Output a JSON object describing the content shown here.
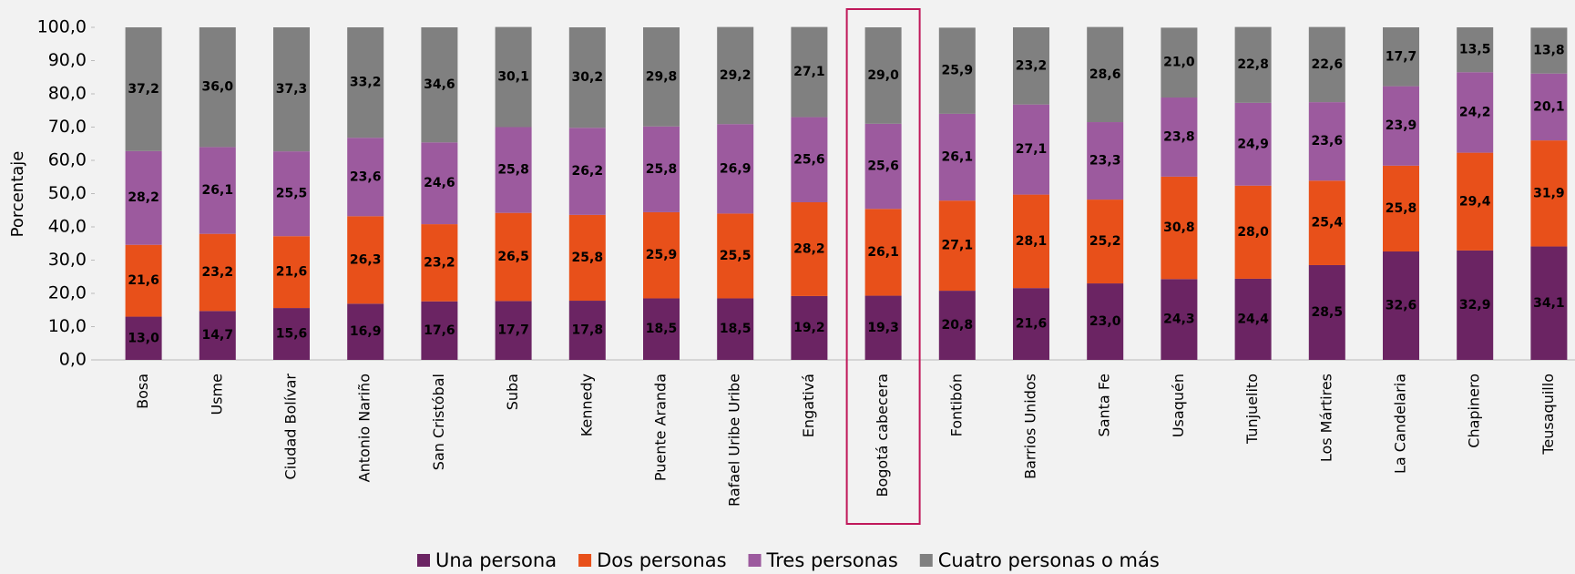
{
  "chart_data": {
    "type": "stacked_bar",
    "y_label": "Porcentaje",
    "categories": [
      "Bosa",
      "Usme",
      "Ciudad Bolívar",
      "Antonio Nariño",
      "San Cristóbal",
      "Suba",
      "Kennedy",
      "Puente Aranda",
      "Rafael Uribe Uribe",
      "Engativá",
      "Bogotá cabecera",
      "Fontibón",
      "Barrios Unidos",
      "Santa Fe",
      "Usaquén",
      "Tunjuelito",
      "Los Mártires",
      "La Candelaria",
      "Chapinero",
      "Teusaquillo"
    ],
    "highlighted_category": 10,
    "highlight_color": "#c0185a",
    "ylim": [
      0,
      100
    ],
    "yticks": [
      {
        "value": 0,
        "label": "0,0"
      },
      {
        "value": 10,
        "label": "10,0"
      },
      {
        "value": 20,
        "label": "20,0"
      },
      {
        "value": 30,
        "label": "30,0"
      },
      {
        "value": 40,
        "label": "40,0"
      },
      {
        "value": 50,
        "label": "50,0"
      },
      {
        "value": 60,
        "label": "60,0"
      },
      {
        "value": 70,
        "label": "70,0"
      },
      {
        "value": 80,
        "label": "80,0"
      },
      {
        "value": 90,
        "label": "90,0"
      },
      {
        "value": 100,
        "label": "100,0"
      }
    ],
    "legend": "bottom",
    "series": [
      {
        "name": "Una persona",
        "color": "#6b2463",
        "label_color": "#ffffff",
        "values": [
          13.0,
          14.7,
          15.6,
          16.9,
          17.6,
          17.7,
          17.8,
          18.5,
          18.5,
          19.2,
          19.3,
          20.8,
          21.6,
          23.0,
          24.3,
          24.4,
          28.5,
          32.6,
          32.9,
          34.1
        ],
        "value_labels": [
          "13,0",
          "14,7",
          "15,6",
          "16,9",
          "17,6",
          "17,7",
          "17,8",
          "18,5",
          "18,5",
          "19,2",
          "19,3",
          "20,8",
          "21,6",
          "23,0",
          "24,3",
          "24,4",
          "28,5",
          "32,6",
          "32,9",
          "34,1"
        ]
      },
      {
        "name": "Dos personas",
        "color": "#e8501a",
        "label_color": "#ffffff",
        "values": [
          21.6,
          23.2,
          21.6,
          26.3,
          23.2,
          26.5,
          25.8,
          25.9,
          25.5,
          28.2,
          26.1,
          27.1,
          28.1,
          25.2,
          30.8,
          28.0,
          25.4,
          25.8,
          29.4,
          31.9
        ],
        "value_labels": [
          "21,6",
          "23,2",
          "21,6",
          "26,3",
          "23,2",
          "26,5",
          "25,8",
          "25,9",
          "25,5",
          "28,2",
          "26,1",
          "27,1",
          "28,1",
          "25,2",
          "30,8",
          "28,0",
          "25,4",
          "25,8",
          "29,4",
          "31,9"
        ]
      },
      {
        "name": "Tres personas",
        "color": "#9c5a9e",
        "label_color": "#000000",
        "values": [
          28.2,
          26.1,
          25.5,
          23.6,
          24.6,
          25.8,
          26.2,
          25.8,
          26.9,
          25.6,
          25.6,
          26.1,
          27.1,
          23.3,
          23.8,
          24.9,
          23.6,
          23.9,
          24.2,
          20.1
        ],
        "value_labels": [
          "28,2",
          "26,1",
          "25,5",
          "23,6",
          "24,6",
          "25,8",
          "26,2",
          "25,8",
          "26,9",
          "25,6",
          "25,6",
          "26,1",
          "27,1",
          "23,3",
          "23,8",
          "24,9",
          "23,6",
          "23,9",
          "24,2",
          "20,1"
        ]
      },
      {
        "name": "Cuatro personas o más",
        "color": "#808080",
        "label_color": "#ffffff",
        "values": [
          37.2,
          36.0,
          37.3,
          33.2,
          34.6,
          30.1,
          30.2,
          29.8,
          29.2,
          27.1,
          29.0,
          25.9,
          23.2,
          28.6,
          21.0,
          22.8,
          22.6,
          17.7,
          13.5,
          13.8
        ],
        "value_labels": [
          "37,2",
          "36,0",
          "37,3",
          "33,2",
          "34,6",
          "30,1",
          "30,2",
          "29,8",
          "29,2",
          "27,1",
          "29,0",
          "25,9",
          "23,2",
          "28,6",
          "21,0",
          "22,8",
          "22,6",
          "17,7",
          "13,5",
          "13,8"
        ]
      }
    ]
  }
}
